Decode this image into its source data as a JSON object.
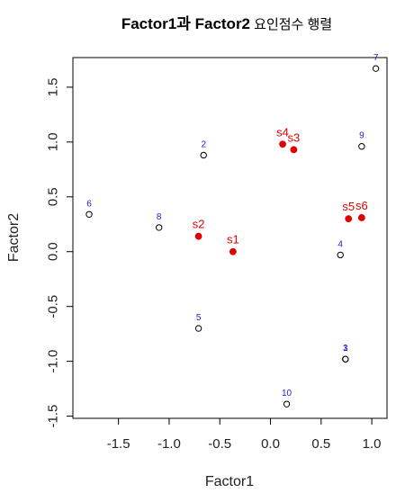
{
  "chart_data": {
    "type": "scatter",
    "title_main": "Factor1과 Factor2",
    "title_suffix": " 요인점수 행렬",
    "xlabel": "Factor1",
    "ylabel": "Factor2",
    "xlim": [
      -1.95,
      1.15
    ],
    "ylim": [
      -1.52,
      1.77
    ],
    "x_ticks": [
      -1.5,
      -1.0,
      -0.5,
      0.0,
      0.5,
      1.0
    ],
    "x_tick_labels": [
      "-1.5",
      "-1.0",
      "-0.5",
      "0.0",
      "0.5",
      "1.0"
    ],
    "y_ticks": [
      -1.5,
      -1.0,
      -0.5,
      0.0,
      0.5,
      1.0,
      1.5
    ],
    "y_tick_labels": [
      "-1.5",
      "-1.0",
      "-0.5",
      "0.0",
      "0.5",
      "1.0",
      "1.5"
    ],
    "grid": false,
    "observations_color": "#1f1fd6",
    "variables_color": "#e00000",
    "observations": [
      {
        "label": "1",
        "x": 0.74,
        "y": -0.98
      },
      {
        "label": "2",
        "x": -0.66,
        "y": 0.88
      },
      {
        "label": "3",
        "x": 0.74,
        "y": -0.98
      },
      {
        "label": "4",
        "x": 0.69,
        "y": -0.03
      },
      {
        "label": "5",
        "x": -0.71,
        "y": -0.7
      },
      {
        "label": "6",
        "x": -1.79,
        "y": 0.34
      },
      {
        "label": "7",
        "x": 1.04,
        "y": 1.67
      },
      {
        "label": "8",
        "x": -1.1,
        "y": 0.22
      },
      {
        "label": "9",
        "x": 0.9,
        "y": 0.96
      },
      {
        "label": "10",
        "x": 0.16,
        "y": -1.39
      }
    ],
    "variables": [
      {
        "label": "s1",
        "x": -0.37,
        "y": 0.0
      },
      {
        "label": "s2",
        "x": -0.71,
        "y": 0.14
      },
      {
        "label": "s3",
        "x": 0.23,
        "y": 0.93
      },
      {
        "label": "s4",
        "x": 0.12,
        "y": 0.98
      },
      {
        "label": "s5",
        "x": 0.77,
        "y": 0.3
      },
      {
        "label": "s6",
        "x": 0.9,
        "y": 0.31
      }
    ]
  }
}
